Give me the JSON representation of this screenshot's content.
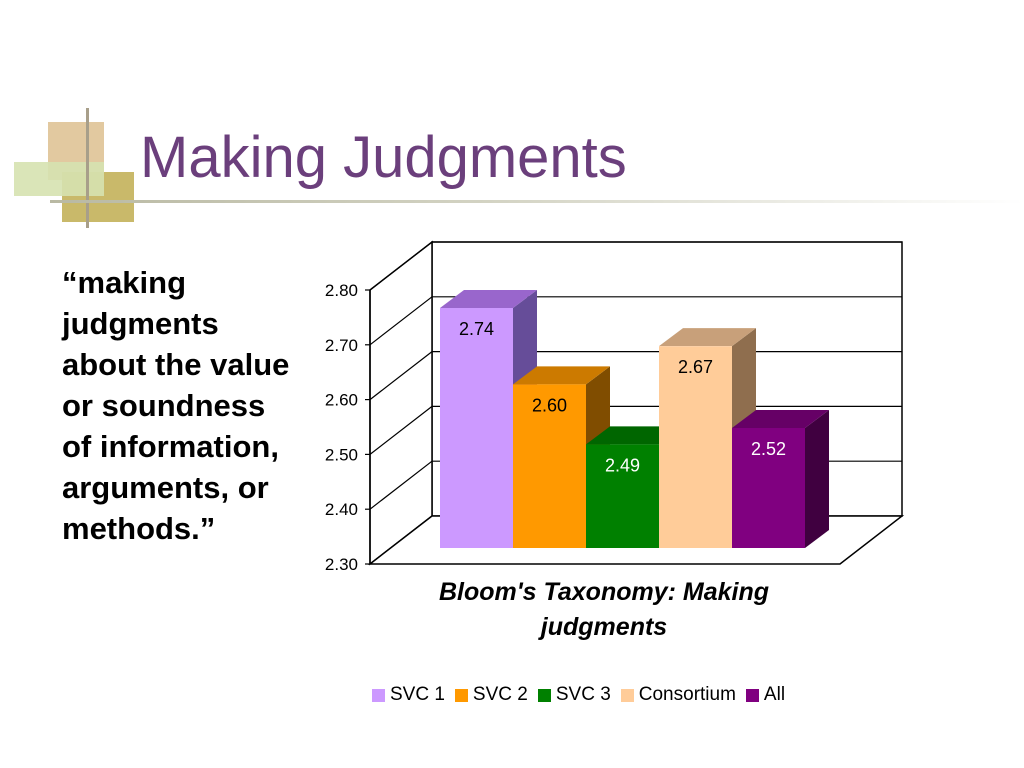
{
  "slide": {
    "title": "Making Judgments",
    "quote": "“making judgments about the value or soundness of information, arguments, or methods.”"
  },
  "chart_data": {
    "type": "bar",
    "categories": [
      "SVC 1",
      "SVC 2",
      "SVC 3",
      "Consortium",
      "All"
    ],
    "values": [
      2.74,
      2.6,
      2.49,
      2.67,
      2.52
    ],
    "data_labels": [
      "2.74",
      "2.60",
      "2.49",
      "2.67",
      "2.52"
    ],
    "xlabel": "Bloom's Taxonomy: Making judgments",
    "xlabel_lines": [
      "Bloom's Taxonomy: Making",
      "judgments"
    ],
    "ylim": [
      2.3,
      2.8
    ],
    "yticks": [
      2.3,
      2.4,
      2.5,
      2.6,
      2.7,
      2.8
    ],
    "ytick_labels": [
      "2.30",
      "2.40",
      "2.50",
      "2.60",
      "2.70",
      "2.80"
    ],
    "grid": true,
    "three_d": true,
    "legend_position": "bottom",
    "colors": {
      "front": [
        "#cc99ff",
        "#ff9900",
        "#008000",
        "#ffcc99",
        "#800080"
      ],
      "top": [
        "#9966cc",
        "#cc7a00",
        "#006600",
        "#c8a07a",
        "#660066"
      ],
      "side": [
        "#664d99",
        "#804d00",
        "#004000",
        "#8f6e4e",
        "#400040"
      ],
      "label_text": [
        "#000000",
        "#000000",
        "#ffffff",
        "#000000",
        "#ffffff"
      ]
    }
  }
}
